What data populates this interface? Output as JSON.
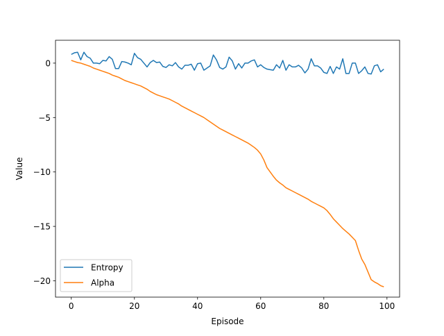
{
  "chart_data": {
    "type": "line",
    "title": "",
    "xlabel": "Episode",
    "ylabel": "Value",
    "xlim": [
      -5,
      104
    ],
    "ylim": [
      -21.5,
      2.1
    ],
    "xticks": [
      0,
      20,
      40,
      60,
      80,
      100
    ],
    "yticks": [
      0,
      -5,
      -10,
      -15,
      -20
    ],
    "ytick_labels": [
      "0",
      "−5",
      "−10",
      "−15",
      "−20"
    ],
    "grid": false,
    "legend_position": "lower-left",
    "series": [
      {
        "name": "Entropy",
        "color": "#1f77b4",
        "x": [
          0,
          1,
          2,
          3,
          4,
          5,
          6,
          7,
          8,
          9,
          10,
          11,
          12,
          13,
          14,
          15,
          16,
          17,
          18,
          19,
          20,
          21,
          22,
          23,
          24,
          25,
          26,
          27,
          28,
          29,
          30,
          31,
          32,
          33,
          34,
          35,
          36,
          37,
          38,
          39,
          40,
          41,
          42,
          43,
          44,
          45,
          46,
          47,
          48,
          49,
          50,
          51,
          52,
          53,
          54,
          55,
          56,
          57,
          58,
          59,
          60,
          61,
          62,
          63,
          64,
          65,
          66,
          67,
          68,
          69,
          70,
          71,
          72,
          73,
          74,
          75,
          76,
          77,
          78,
          79,
          80,
          81,
          82,
          83,
          84,
          85,
          86,
          87,
          88,
          89,
          90,
          91,
          92,
          93,
          94,
          95,
          96,
          97,
          98,
          99
        ],
        "values": [
          0.8,
          0.95,
          1.0,
          0.3,
          1.0,
          0.6,
          0.45,
          0.0,
          0.0,
          -0.05,
          0.25,
          0.2,
          0.6,
          0.35,
          -0.5,
          -0.5,
          0.15,
          0.1,
          0.0,
          -0.15,
          0.9,
          0.5,
          0.35,
          0.0,
          -0.35,
          0.05,
          0.25,
          0.05,
          0.1,
          -0.3,
          -0.4,
          -0.15,
          -0.25,
          0.05,
          -0.35,
          -0.55,
          -0.2,
          -0.2,
          -0.1,
          -0.65,
          -0.05,
          0.0,
          -0.65,
          -0.45,
          -0.25,
          0.75,
          0.3,
          -0.4,
          -0.55,
          -0.35,
          0.55,
          0.2,
          -0.55,
          -0.05,
          -0.45,
          0.0,
          0.0,
          0.2,
          0.3,
          -0.35,
          -0.15,
          -0.4,
          -0.55,
          -0.6,
          -0.65,
          -0.15,
          -0.45,
          0.25,
          -0.65,
          -0.15,
          -0.35,
          -0.35,
          -0.2,
          -0.45,
          -0.9,
          -0.55,
          0.4,
          -0.25,
          -0.25,
          -0.45,
          -0.85,
          -0.95,
          -0.3,
          -0.95,
          -0.35,
          -0.55,
          0.4,
          -0.95,
          -0.95,
          0.0,
          0.0,
          -0.95,
          -0.7,
          -0.35,
          -0.95,
          -1.0,
          -0.25,
          -0.15,
          -0.8,
          -0.55
        ]
      },
      {
        "name": "Alpha",
        "color": "#ff7f0e",
        "x": [
          0,
          1,
          2,
          3,
          4,
          5,
          6,
          7,
          8,
          9,
          10,
          11,
          12,
          13,
          14,
          15,
          16,
          17,
          18,
          19,
          20,
          21,
          22,
          23,
          24,
          25,
          26,
          27,
          28,
          29,
          30,
          31,
          32,
          33,
          34,
          35,
          36,
          37,
          38,
          39,
          40,
          41,
          42,
          43,
          44,
          45,
          46,
          47,
          48,
          49,
          50,
          51,
          52,
          53,
          54,
          55,
          56,
          57,
          58,
          59,
          60,
          61,
          62,
          63,
          64,
          65,
          66,
          67,
          68,
          69,
          70,
          71,
          72,
          73,
          74,
          75,
          76,
          77,
          78,
          79,
          80,
          81,
          82,
          83,
          84,
          85,
          86,
          87,
          88,
          89,
          90,
          91,
          92,
          93,
          94,
          95,
          96,
          97,
          98,
          99
        ],
        "values": [
          0.25,
          0.15,
          0.05,
          0.0,
          -0.1,
          -0.2,
          -0.3,
          -0.45,
          -0.55,
          -0.65,
          -0.75,
          -0.85,
          -0.95,
          -1.1,
          -1.2,
          -1.3,
          -1.45,
          -1.6,
          -1.7,
          -1.8,
          -1.9,
          -2.0,
          -2.1,
          -2.25,
          -2.4,
          -2.6,
          -2.75,
          -2.9,
          -3.0,
          -3.1,
          -3.2,
          -3.3,
          -3.45,
          -3.6,
          -3.75,
          -3.95,
          -4.1,
          -4.25,
          -4.4,
          -4.55,
          -4.7,
          -4.85,
          -5.0,
          -5.2,
          -5.4,
          -5.6,
          -5.8,
          -6.0,
          -6.15,
          -6.3,
          -6.45,
          -6.6,
          -6.75,
          -6.9,
          -7.05,
          -7.2,
          -7.35,
          -7.55,
          -7.75,
          -8.0,
          -8.35,
          -8.9,
          -9.6,
          -10.0,
          -10.4,
          -10.75,
          -11.0,
          -11.2,
          -11.45,
          -11.6,
          -11.75,
          -11.9,
          -12.05,
          -12.2,
          -12.35,
          -12.5,
          -12.7,
          -12.85,
          -13.0,
          -13.15,
          -13.3,
          -13.55,
          -13.9,
          -14.3,
          -14.6,
          -14.9,
          -15.2,
          -15.45,
          -15.7,
          -16.0,
          -16.3,
          -17.2,
          -18.0,
          -18.5,
          -19.2,
          -19.9,
          -20.1,
          -20.25,
          -20.45,
          -20.55
        ]
      }
    ]
  }
}
